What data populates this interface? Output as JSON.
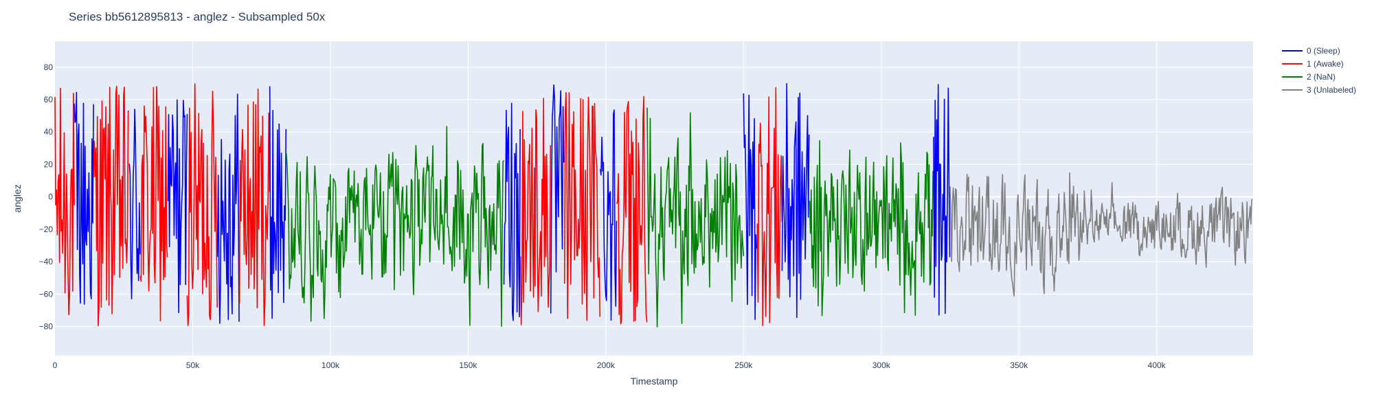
{
  "chart_data": {
    "type": "line",
    "title": "Series bb5612895813 - anglez - Subsampled 50x",
    "xlabel": "Timestamp",
    "ylabel": "anglez",
    "xlim": [
      0,
      435000
    ],
    "ylim": [
      -98,
      96
    ],
    "x_ticks": [
      {
        "value": 0,
        "label": "0"
      },
      {
        "value": 50000,
        "label": "50k"
      },
      {
        "value": 100000,
        "label": "100k"
      },
      {
        "value": 150000,
        "label": "150k"
      },
      {
        "value": 200000,
        "label": "200k"
      },
      {
        "value": 250000,
        "label": "250k"
      },
      {
        "value": 300000,
        "label": "300k"
      },
      {
        "value": 350000,
        "label": "350k"
      },
      {
        "value": 400000,
        "label": "400k"
      }
    ],
    "y_ticks": [
      {
        "value": 80,
        "label": "80"
      },
      {
        "value": 60,
        "label": "60"
      },
      {
        "value": 40,
        "label": "40"
      },
      {
        "value": 20,
        "label": "20"
      },
      {
        "value": 0,
        "label": "0"
      },
      {
        "value": -20,
        "label": "−20"
      },
      {
        "value": -40,
        "label": "−40"
      },
      {
        "value": -60,
        "label": "−60"
      },
      {
        "value": -80,
        "label": "−80"
      }
    ],
    "grid": true,
    "legend_position": "top-right",
    "plot_background": "#e5ecf6",
    "series": [
      {
        "name": "0 (Sleep)",
        "color": "#0000ff"
      },
      {
        "name": "1 (Awake)",
        "color": "#ff0000"
      },
      {
        "name": "2 (NaN)",
        "color": "#008000"
      },
      {
        "name": "3 (Unlabeled)",
        "color": "#808080"
      }
    ],
    "segments": [
      {
        "series": 1,
        "x0": 0,
        "x1": 7000
      },
      {
        "series": 0,
        "x0": 7000,
        "x1": 14000
      },
      {
        "series": 1,
        "x0": 14000,
        "x1": 27000
      },
      {
        "series": 0,
        "x0": 27000,
        "x1": 31000
      },
      {
        "series": 1,
        "x0": 31000,
        "x1": 41000
      },
      {
        "series": 0,
        "x0": 41000,
        "x1": 48000
      },
      {
        "series": 1,
        "x0": 48000,
        "x1": 59000
      },
      {
        "series": 0,
        "x0": 59000,
        "x1": 67000
      },
      {
        "series": 1,
        "x0": 67000,
        "x1": 78000
      },
      {
        "series": 0,
        "x0": 78000,
        "x1": 84000
      },
      {
        "series": 2,
        "x0": 84000,
        "x1": 163000
      },
      {
        "series": 0,
        "x0": 163000,
        "x1": 169000
      },
      {
        "series": 1,
        "x0": 169000,
        "x1": 180000
      },
      {
        "series": 0,
        "x0": 180000,
        "x1": 185000
      },
      {
        "series": 1,
        "x0": 185000,
        "x1": 198000
      },
      {
        "series": 0,
        "x0": 198000,
        "x1": 204000
      },
      {
        "series": 1,
        "x0": 204000,
        "x1": 215000
      },
      {
        "series": 2,
        "x0": 215000,
        "x1": 250000
      },
      {
        "series": 0,
        "x0": 250000,
        "x1": 255000
      },
      {
        "series": 1,
        "x0": 255000,
        "x1": 264000
      },
      {
        "series": 0,
        "x0": 264000,
        "x1": 274000
      },
      {
        "series": 2,
        "x0": 274000,
        "x1": 319000
      },
      {
        "series": 0,
        "x0": 319000,
        "x1": 325000
      },
      {
        "series": 3,
        "x0": 325000,
        "x1": 435000
      }
    ]
  }
}
